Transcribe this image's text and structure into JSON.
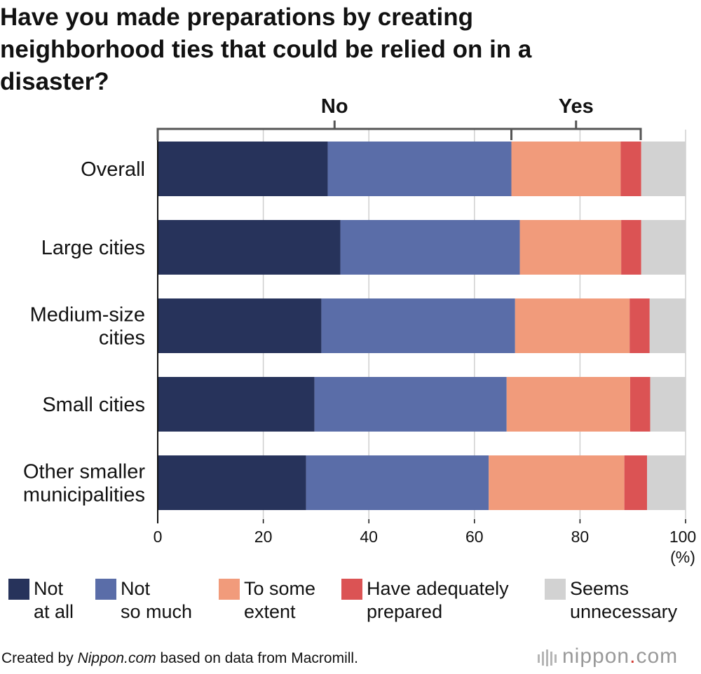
{
  "title": "Have you made preparations by creating neighborhood ties that could be relied on in a disaster?",
  "groups": [
    {
      "label": "No",
      "range": [
        0,
        67
      ]
    },
    {
      "label": "Yes",
      "range": [
        67,
        91.5
      ]
    }
  ],
  "colors": {
    "not_at_all": "#27335b",
    "not_so_much": "#5a6da8",
    "to_some_extent": "#f19b7b",
    "have_adequately_prepared": "#db5354",
    "seems_unnecessary": "#d2d2d2",
    "grid": "#cfcfcf",
    "bracket": "#555555"
  },
  "chart_data": {
    "type": "bar",
    "orientation": "horizontal",
    "stacked": true,
    "categories": [
      "Overall",
      "Large cities",
      "Medium-size\ncities",
      "Small cities",
      "Other smaller\nmunicipalities"
    ],
    "series": [
      {
        "name": "Not at all",
        "color_key": "not_at_all",
        "values": [
          32.2,
          34.6,
          31.0,
          29.7,
          28.1
        ]
      },
      {
        "name": "Not so much",
        "color_key": "not_so_much",
        "values": [
          34.8,
          34.0,
          36.7,
          36.4,
          34.6
        ]
      },
      {
        "name": "To some extent",
        "color_key": "to_some_extent",
        "values": [
          20.7,
          19.2,
          21.7,
          23.4,
          25.7
        ]
      },
      {
        "name": "Have adequately prepared",
        "color_key": "have_adequately_prepared",
        "values": [
          3.9,
          3.8,
          3.8,
          3.8,
          4.3
        ]
      },
      {
        "name": "Seems unnecessary",
        "color_key": "seems_unnecessary",
        "values": [
          8.4,
          8.4,
          6.8,
          6.7,
          7.3
        ]
      }
    ],
    "x_ticks": [
      "0",
      "20",
      "40",
      "60",
      "80",
      "100"
    ],
    "xlim": [
      0,
      100
    ],
    "x_unit": "(%)",
    "grid": true,
    "legend_position": "bottom"
  },
  "legend": [
    {
      "label": "Not\nat all",
      "color_key": "not_at_all"
    },
    {
      "label": "Not\nso much",
      "color_key": "not_so_much"
    },
    {
      "label": "To some\nextent",
      "color_key": "to_some_extent"
    },
    {
      "label": "Have adequately\nprepared",
      "color_key": "have_adequately_prepared"
    },
    {
      "label": "Seems\nunnecessary",
      "color_key": "seems_unnecessary"
    }
  ],
  "footer": {
    "prefix": "Created by ",
    "site": "Nippon.com",
    "suffix": " based on data from Macromill."
  },
  "brand": {
    "name": "nippon",
    "dot": ".",
    "tld": "com"
  }
}
